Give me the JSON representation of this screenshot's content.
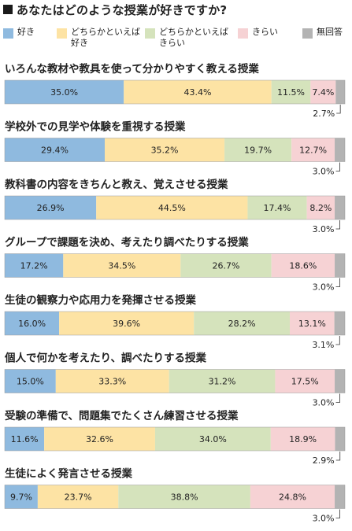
{
  "title": "あなたはどのような授業が好きですか?",
  "legend": [
    {
      "label": "好き",
      "color": "#8fbadf"
    },
    {
      "label": "どちらかといえば\n好き",
      "color": "#fde3a4"
    },
    {
      "label": "どちらかといえば\nきらい",
      "color": "#d5e3bc"
    },
    {
      "label": "きらい",
      "color": "#f6d2d4"
    },
    {
      "label": "無回答",
      "color": "#b3b3b3"
    }
  ],
  "chart_data": {
    "type": "bar",
    "orientation": "horizontal",
    "stacked": true,
    "percent_stacked": true,
    "xlim": [
      0,
      100
    ],
    "series_names": [
      "好き",
      "どちらかといえば好き",
      "どちらかといえばきらい",
      "きらい",
      "無回答"
    ],
    "series_colors": [
      "#8fbadf",
      "#fde3a4",
      "#d5e3bc",
      "#f6d2d4",
      "#b3b3b3"
    ],
    "rows": [
      {
        "label": "いろんな教材や教具を使って分かりやすく教える授業",
        "values": [
          35.0,
          43.4,
          11.5,
          7.4,
          2.7
        ],
        "value_labels": [
          "35.0%",
          "43.4%",
          "11.5%",
          "7.4%",
          "2.7%"
        ]
      },
      {
        "label": "学校外での見学や体験を重視する授業",
        "values": [
          29.4,
          35.2,
          19.7,
          12.7,
          3.0
        ],
        "value_labels": [
          "29.4%",
          "35.2%",
          "19.7%",
          "12.7%",
          "3.0%"
        ]
      },
      {
        "label": "教科書の内容をきちんと教え、覚えさせる授業",
        "values": [
          26.9,
          44.5,
          17.4,
          8.2,
          3.0
        ],
        "value_labels": [
          "26.9%",
          "44.5%",
          "17.4%",
          "8.2%",
          "3.0%"
        ]
      },
      {
        "label": "グループで課題を決め、考えたり調べたりする授業",
        "values": [
          17.2,
          34.5,
          26.7,
          18.6,
          3.0
        ],
        "value_labels": [
          "17.2%",
          "34.5%",
          "26.7%",
          "18.6%",
          "3.0%"
        ]
      },
      {
        "label": "生徒の観察力や応用力を発揮させる授業",
        "values": [
          16.0,
          39.6,
          28.2,
          13.1,
          3.1
        ],
        "value_labels": [
          "16.0%",
          "39.6%",
          "28.2%",
          "13.1%",
          "3.1%"
        ]
      },
      {
        "label": "個人で何かを考えたり、調べたりする授業",
        "values": [
          15.0,
          33.3,
          31.2,
          17.5,
          3.0
        ],
        "value_labels": [
          "15.0%",
          "33.3%",
          "31.2%",
          "17.5%",
          "3.0%"
        ]
      },
      {
        "label": "受験の準備で、問題集でたくさん練習させる授業",
        "values": [
          11.6,
          32.6,
          34.0,
          18.9,
          2.9
        ],
        "value_labels": [
          "11.6%",
          "32.6%",
          "34.0%",
          "18.9%",
          "2.9%"
        ]
      },
      {
        "label": "生徒によく発言させる授業",
        "values": [
          9.7,
          23.7,
          38.8,
          24.8,
          3.0
        ],
        "value_labels": [
          "9.7%",
          "23.7%",
          "38.8%",
          "24.8%",
          "3.0%"
        ]
      }
    ]
  }
}
